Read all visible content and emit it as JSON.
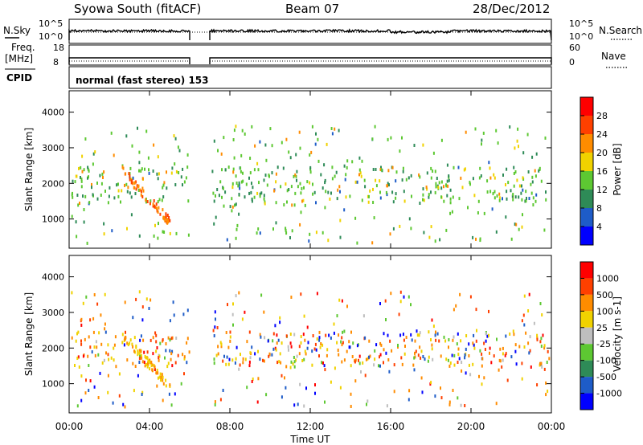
{
  "header": {
    "station": "Syowa South (fitACF)",
    "beam": "Beam 07",
    "date": "28/Dec/2012"
  },
  "top_panels": {
    "nsky_label": "N.Sky",
    "nsky_ticks": [
      "10^5",
      "10^0"
    ],
    "nsearch_label": "N.Search",
    "nsearch_ticks": [
      "10^5",
      "10^0"
    ],
    "freq_label_1": "Freq.",
    "freq_label_2": "[MHz]",
    "freq_ticks": [
      "18",
      "8"
    ],
    "nave_label": "Nave",
    "nave_ticks": [
      "60",
      "0"
    ],
    "cpid_label": "CPID",
    "cpid_text": "normal (fast stereo) 153",
    "data_gap": {
      "start_hour": 6.0,
      "end_hour": 7.0
    }
  },
  "chart_data": [
    {
      "type": "scatter",
      "name": "power",
      "ylabel": "Slant Range [km]",
      "ylim": [
        180,
        4600
      ],
      "yticks": [
        1000,
        2000,
        3000,
        4000
      ],
      "colorbar_label": "Power [dB]",
      "colorbar_ticks": [
        "28",
        "24",
        "20",
        "16",
        "12",
        "8",
        "4"
      ],
      "colorbar_colors": [
        "#0000ff",
        "#1e5cc8",
        "#2e8b57",
        "#5dc832",
        "#f0d200",
        "#ff8c00",
        "#ff4000",
        "#ff0000"
      ]
    },
    {
      "type": "scatter",
      "name": "velocity",
      "ylabel": "Slant Range [km]",
      "ylim": [
        180,
        4600
      ],
      "yticks": [
        1000,
        2000,
        3000,
        4000
      ],
      "colorbar_label": "Velocity [m s-1]",
      "colorbar_ticks": [
        "1000",
        "500",
        "100",
        "25",
        "-25",
        "-100",
        "-500",
        "-1000"
      ],
      "colorbar_colors": [
        "#0000ff",
        "#1e5cc8",
        "#2e8b57",
        "#5dc832",
        "#bebebe",
        "#f0d200",
        "#ff8c00",
        "#ff4000",
        "#ff0000"
      ]
    }
  ],
  "x_axis": {
    "label": "Time UT",
    "ticks": [
      "00:00",
      "04:00",
      "08:00",
      "12:00",
      "16:00",
      "20:00",
      "00:00"
    ],
    "range_hours": [
      0,
      24
    ]
  }
}
